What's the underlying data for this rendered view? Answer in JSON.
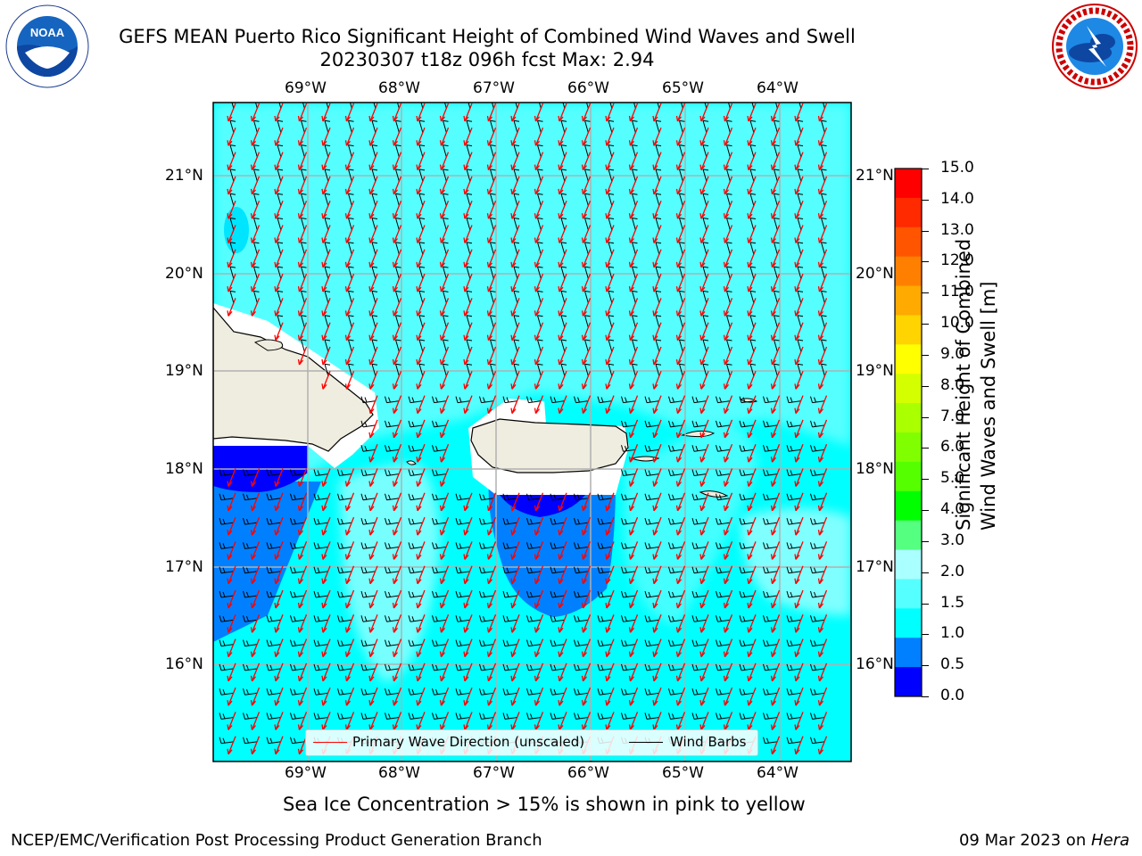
{
  "header": {
    "title_line1": "GEFS MEAN Puerto Rico Significant Height of Combined Wind Waves and Swell",
    "title_line2": "20230307 t18z 096h fcst   Max: 2.94"
  },
  "logos": {
    "noaa_text": "NOAA",
    "nws_text": "NATIONAL WEATHER SERVICE"
  },
  "map": {
    "lon_labels": [
      "69°W",
      "68°W",
      "67°W",
      "66°W",
      "65°W",
      "64°W"
    ],
    "lat_labels": [
      "21°N",
      "20°N",
      "19°N",
      "18°N",
      "17°N",
      "16°N"
    ],
    "ocean_color": "#00ffff",
    "land_color": "#efeddf"
  },
  "legend": {
    "wave_label": "Primary Wave Direction (unscaled)",
    "wave_color": "#ff0000",
    "barb_label": "Wind Barbs",
    "barb_color": "#000000"
  },
  "colorbar": {
    "label_line1": "Significant Height of Combined",
    "label_line2": "Wind Waves and Swell [m]",
    "ticks": [
      "15.0",
      "14.0",
      "13.0",
      "12.0",
      "11.0",
      "10.0",
      "9.0",
      "8.0",
      "7.0",
      "6.0",
      "5.0",
      "4.0",
      "3.0",
      "2.0",
      "1.5",
      "1.0",
      "0.5",
      "0.0"
    ],
    "colors_top_to_bottom": [
      "#ff0000",
      "#ff2a00",
      "#ff5500",
      "#ff8000",
      "#ffaa00",
      "#ffd400",
      "#ffff00",
      "#d4ff00",
      "#aaff00",
      "#80ff00",
      "#55ff00",
      "#00ff00",
      "#55ff80",
      "#aaffff",
      "#55ffff",
      "#00ffff",
      "#0080ff",
      "#0000ff"
    ]
  },
  "notes": {
    "ice": "Sea Ice Concentration > 15% is shown in pink to yellow"
  },
  "footer": {
    "left": "NCEP/EMC/Verification Post Processing Product Generation Branch",
    "date": "09 Mar 2023 on ",
    "machine": "Hera"
  }
}
